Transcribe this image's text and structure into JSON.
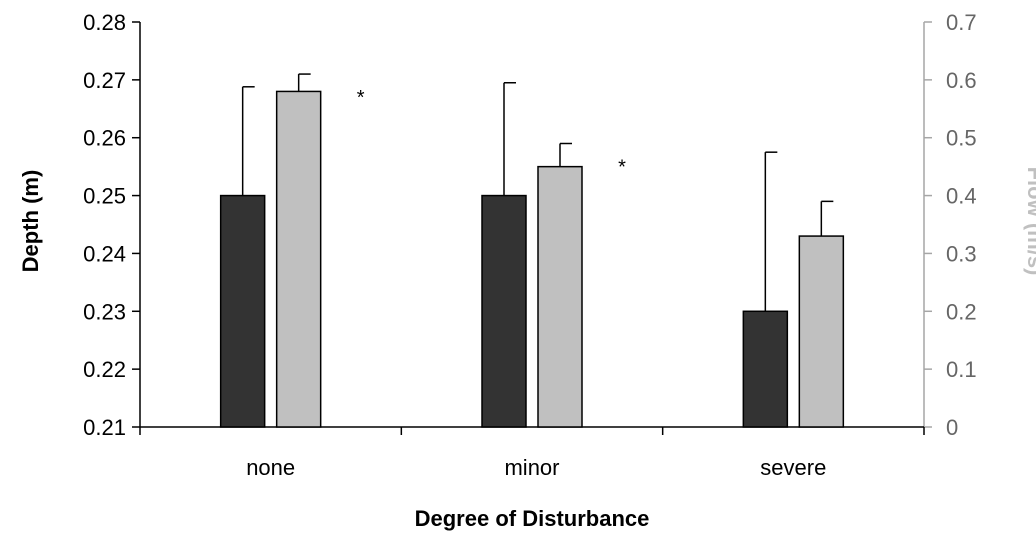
{
  "chart_data": {
    "type": "bar",
    "xlabel": "Degree of Disturbance",
    "ylabel": "Depth (m)",
    "y2label": "Flow (m/s)",
    "categories": [
      "none",
      "minor",
      "severe"
    ],
    "ylim": [
      0.21,
      0.28
    ],
    "y2lim": [
      0,
      0.7
    ],
    "yticks": [
      "0.21",
      "0.22",
      "0.23",
      "0.24",
      "0.25",
      "0.26",
      "0.27",
      "0.28"
    ],
    "y2ticks": [
      "0",
      "0.1",
      "0.2",
      "0.3",
      "0.4",
      "0.5",
      "0.6",
      "0.7"
    ],
    "series": [
      {
        "axis": "left",
        "color": "#333333",
        "values": [
          0.25,
          0.25,
          0.23
        ],
        "error_upper": [
          0.0188,
          0.0195,
          0.0275
        ]
      },
      {
        "axis": "right",
        "color": "#c0c0c0",
        "values": [
          0.58,
          0.45,
          0.33
        ],
        "error_upper": [
          0.03,
          0.04,
          0.06
        ]
      }
    ],
    "annotations": [
      {
        "category": "none",
        "text": "*"
      },
      {
        "category": "minor",
        "text": "*"
      }
    ],
    "grid": false,
    "legend": "none",
    "axis_colors": {
      "left": "#000000",
      "right": "#a6a6a6"
    }
  }
}
